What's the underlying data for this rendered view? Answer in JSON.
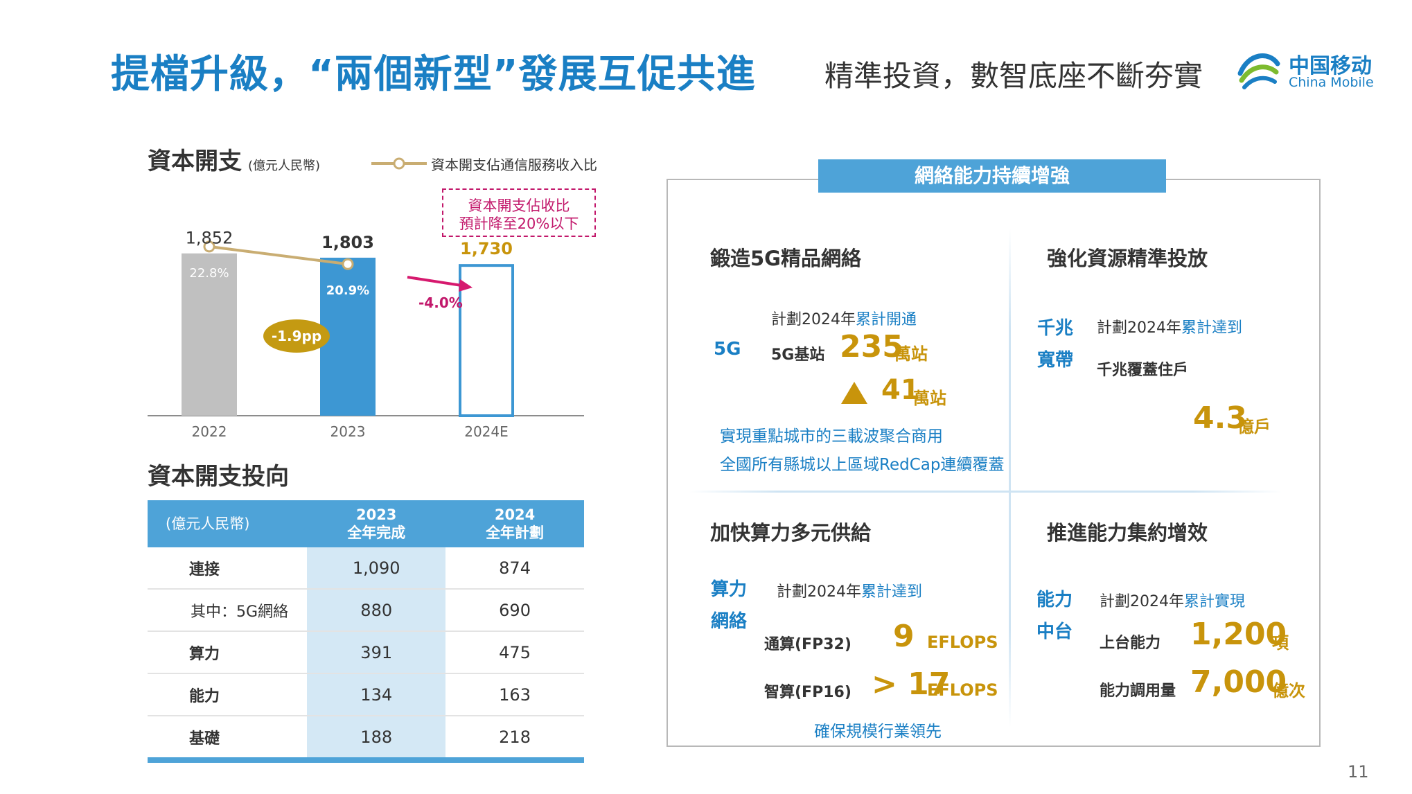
{
  "header": {
    "title_main": "提檔升級，“兩個新型”發展互促共進",
    "title_sub": "精準投資，數智底座不斷夯實",
    "logo_cn": "中国移动",
    "logo_en": "China Mobile"
  },
  "capex": {
    "title": "資本開支",
    "unit": "(億元人民幣)",
    "legend": "資本開支佔通信服務收入比",
    "callout_line1": "資本開支佔收比",
    "callout_line2": "預計降至20%以下",
    "change_pp": "-1.9pp",
    "change_pct": "-4.0%"
  },
  "chart_data": {
    "type": "bar",
    "categories": [
      "2022",
      "2023",
      "2024E"
    ],
    "series": [
      {
        "name": "資本開支",
        "values": [
          1852,
          1803,
          1730
        ],
        "labels": [
          "1,852",
          "1,803",
          "1,730"
        ]
      },
      {
        "name": "資本開支佔通信服務收入比",
        "values": [
          22.8,
          20.9,
          null
        ],
        "labels": [
          "22.8%",
          "20.9%",
          ""
        ]
      }
    ],
    "colors": {
      "2022": "#c0c0c0",
      "2023": "#3d97d3",
      "2024E": "#ffffff",
      "ratio_line": "#c9ad72"
    },
    "ylim": [
      0,
      2000
    ],
    "ratio_ylim": [
      0,
      50
    ]
  },
  "capex_direction": {
    "title": "資本開支投向",
    "unit_header": "(億元人民幣)",
    "col_2023_line1": "2023",
    "col_2023_line2": "全年完成",
    "col_2024_line1": "2024",
    "col_2024_line2": "全年計劃",
    "rows": [
      {
        "label": "連接",
        "v2023": "1,090",
        "v2024": "874"
      },
      {
        "label": "其中：5G網絡",
        "v2023": "880",
        "v2024": "690"
      },
      {
        "label": "算力",
        "v2023": "391",
        "v2024": "475"
      },
      {
        "label": "能力",
        "v2023": "134",
        "v2024": "163"
      },
      {
        "label": "基礎",
        "v2023": "188",
        "v2024": "218"
      }
    ]
  },
  "network": {
    "banner": "網絡能力持續增強",
    "q1": {
      "title": "鍛造5G精品網絡",
      "tag": "5G",
      "plan_prefix": "計劃2024年",
      "plan_highlight": "累計開通",
      "metric": "5G基站",
      "value": "235",
      "unit": "萬站",
      "increase_value": "41",
      "increase_unit": "萬站",
      "note1": "實現重點城市的三載波聚合商用",
      "note2": "全國所有縣城以上區域RedCap連續覆蓋"
    },
    "q2": {
      "title": "強化資源精準投放",
      "tag_line1": "千兆",
      "tag_line2": "寬帶",
      "plan_prefix": "計劃2024年",
      "plan_highlight": "累計達到",
      "metric": "千兆覆蓋住戶",
      "value": "4.3",
      "unit": "億戶"
    },
    "q3": {
      "title": "加快算力多元供給",
      "tag_line1": "算力",
      "tag_line2": "網絡",
      "plan_prefix": "計劃2024年",
      "plan_highlight": "累計達到",
      "metric1": "通算(FP32)",
      "value1": "9",
      "unit1": "EFLOPS",
      "metric2": "智算(FP16)",
      "value2": "> 17",
      "unit2": "EFLOPS",
      "note": "確保規模行業領先"
    },
    "q4": {
      "title": "推進能力集約增效",
      "tag_line1": "能力",
      "tag_line2": "中台",
      "plan_prefix": "計劃2024年",
      "plan_highlight": "累計實現",
      "metric1": "上台能力",
      "value1": "1,200",
      "unit1": "項",
      "metric2": "能力調用量",
      "value2": "7,000",
      "unit2": "億次"
    }
  },
  "page_number": "11"
}
